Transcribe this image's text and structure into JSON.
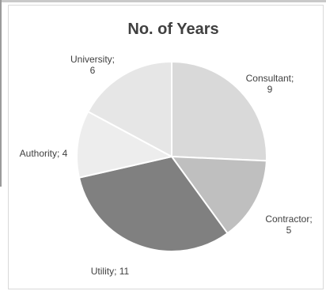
{
  "chart_data": {
    "type": "pie",
    "title": "No. of Years",
    "slices": [
      {
        "label": "Consultant",
        "value": 9,
        "color": "#d9d9d9"
      },
      {
        "label": "Contractor",
        "value": 5,
        "color": "#bfbfbf"
      },
      {
        "label": "Utility",
        "value": 11,
        "color": "#808080"
      },
      {
        "label": "Authority",
        "value": 4,
        "color": "#ededed"
      },
      {
        "label": "University",
        "value": 6,
        "color": "#e6e6e6"
      }
    ],
    "slice_border_color": "#ffffff",
    "start_angle_deg": 0,
    "direction": "clockwise",
    "legend": "none",
    "data_labels": "category-and-value"
  }
}
